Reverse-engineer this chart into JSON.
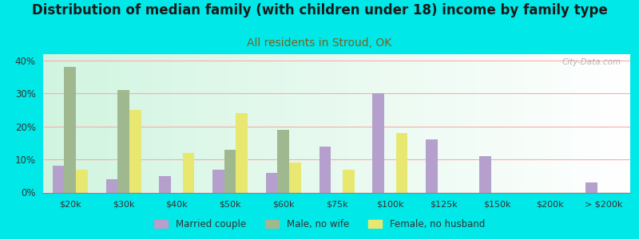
{
  "title": "Distribution of median family (with children under 18) income by family type",
  "subtitle": "All residents in Stroud, OK",
  "categories": [
    "$20k",
    "$30k",
    "$40k",
    "$50k",
    "$60k",
    "$75k",
    "$100k",
    "$125k",
    "$150k",
    "$200k",
    "> $200k"
  ],
  "married_couple": [
    8,
    4,
    5,
    7,
    6,
    14,
    30,
    16,
    11,
    0,
    3
  ],
  "male_no_wife": [
    38,
    31,
    0,
    13,
    19,
    0,
    0,
    0,
    0,
    0,
    0
  ],
  "female_no_husband": [
    7,
    25,
    12,
    24,
    9,
    7,
    18,
    0,
    0,
    0,
    0
  ],
  "married_color": "#b59fcc",
  "male_color": "#a0b890",
  "female_color": "#e8e870",
  "ylim": [
    0,
    42
  ],
  "yticks": [
    0,
    10,
    20,
    30,
    40
  ],
  "ytick_labels": [
    "0%",
    "10%",
    "20%",
    "30%",
    "40%"
  ],
  "outer_bg": "#00e8e8",
  "title_fontsize": 12,
  "subtitle_fontsize": 10,
  "title_color": "#1a1a1a",
  "subtitle_color": "#7a6020",
  "watermark": "City-Data.com",
  "grid_color": "#ffaaaa",
  "legend_labels": [
    "Married couple",
    "Male, no wife",
    "Female, no husband"
  ]
}
